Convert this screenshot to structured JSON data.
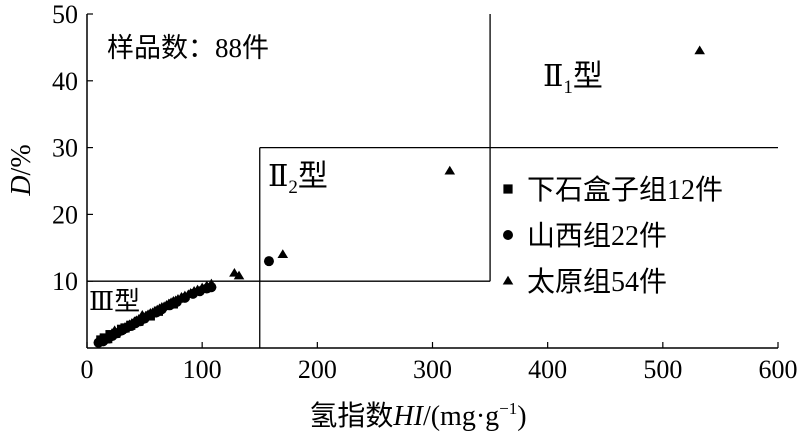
{
  "chart_data": {
    "type": "scatter",
    "xlabel_parts": {
      "prefix": "氢指数",
      "var": "HI",
      "unit_open": "/(mg·g",
      "sup": "−1",
      "unit_close": ")"
    },
    "ylabel_parts": {
      "var": "D",
      "unit": "/%"
    },
    "xlim": [
      0,
      600
    ],
    "ylim": [
      0,
      50
    ],
    "x_ticks": [
      {
        "v": 0,
        "label": "0"
      },
      {
        "v": 100,
        "label": "100"
      },
      {
        "v": 200,
        "label": "200"
      },
      {
        "v": 300,
        "label": "300"
      },
      {
        "v": 400,
        "label": "400"
      },
      {
        "v": 500,
        "label": "500"
      },
      {
        "v": 600,
        "label": "600"
      }
    ],
    "y_ticks": [
      {
        "v": 10,
        "label": "10"
      },
      {
        "v": 20,
        "label": "20"
      },
      {
        "v": 30,
        "label": "30"
      },
      {
        "v": 40,
        "label": "40"
      },
      {
        "v": 50,
        "label": "50"
      }
    ],
    "annotation_samples": "样品数：88件",
    "regions": {
      "type_II1": {
        "main": "Ⅱ",
        "sub": "1",
        "suffix": "型"
      },
      "type_II2": {
        "main": "Ⅱ",
        "sub": "2",
        "suffix": "型"
      },
      "type_III": {
        "text": "Ⅲ型"
      }
    },
    "boundary_lines": [
      {
        "x1": 150,
        "y1": 0,
        "x2": 150,
        "y2": 30
      },
      {
        "x1": 150,
        "y1": 30,
        "x2": 600,
        "y2": 30
      },
      {
        "x1": 0,
        "y1": 10,
        "x2": 350,
        "y2": 10
      },
      {
        "x1": 350,
        "y1": 10,
        "x2": 350,
        "y2": 50
      }
    ],
    "legend_position": "right",
    "series": [
      {
        "name": "下石盒子组12件",
        "marker": "square",
        "points": [
          [
            12,
            1.2
          ],
          [
            15,
            1.5
          ],
          [
            18,
            1.4
          ],
          [
            20,
            2.0
          ],
          [
            25,
            2.2
          ],
          [
            30,
            2.8
          ],
          [
            33,
            3.0
          ],
          [
            38,
            3.4
          ],
          [
            45,
            4.0
          ],
          [
            55,
            4.8
          ],
          [
            62,
            5.5
          ],
          [
            75,
            6.6
          ]
        ]
      },
      {
        "name": "山西组22件",
        "marker": "circle",
        "points": [
          [
            10,
            0.8
          ],
          [
            14,
            1.0
          ],
          [
            18,
            1.4
          ],
          [
            22,
            1.8
          ],
          [
            26,
            2.2
          ],
          [
            30,
            2.6
          ],
          [
            34,
            3.0
          ],
          [
            38,
            3.3
          ],
          [
            42,
            3.7
          ],
          [
            46,
            4.0
          ],
          [
            50,
            4.4
          ],
          [
            55,
            4.9
          ],
          [
            60,
            5.3
          ],
          [
            65,
            5.8
          ],
          [
            72,
            6.4
          ],
          [
            78,
            6.9
          ],
          [
            85,
            7.5
          ],
          [
            92,
            8.1
          ],
          [
            98,
            8.5
          ],
          [
            104,
            8.9
          ],
          [
            108,
            9.1
          ],
          [
            158,
            13.0
          ]
        ]
      },
      {
        "name": "太原组54件",
        "marker": "triangle",
        "points": [
          [
            11,
            0.9
          ],
          [
            13,
            1.1
          ],
          [
            15,
            1.3
          ],
          [
            17,
            1.5
          ],
          [
            19,
            1.7
          ],
          [
            21,
            1.9
          ],
          [
            23,
            2.1
          ],
          [
            25,
            2.3
          ],
          [
            27,
            2.5
          ],
          [
            29,
            2.7
          ],
          [
            31,
            2.9
          ],
          [
            33,
            3.1
          ],
          [
            35,
            3.3
          ],
          [
            37,
            3.5
          ],
          [
            39,
            3.7
          ],
          [
            41,
            3.9
          ],
          [
            43,
            4.1
          ],
          [
            45,
            4.3
          ],
          [
            47,
            4.5
          ],
          [
            49,
            4.6
          ],
          [
            51,
            4.8
          ],
          [
            53,
            5.0
          ],
          [
            55,
            5.2
          ],
          [
            57,
            5.3
          ],
          [
            59,
            5.5
          ],
          [
            61,
            5.7
          ],
          [
            63,
            5.9
          ],
          [
            65,
            6.1
          ],
          [
            67,
            6.2
          ],
          [
            69,
            6.4
          ],
          [
            71,
            6.6
          ],
          [
            73,
            6.8
          ],
          [
            75,
            7.0
          ],
          [
            77,
            7.1
          ],
          [
            79,
            7.3
          ],
          [
            82,
            7.6
          ],
          [
            85,
            7.8
          ],
          [
            88,
            8.0
          ],
          [
            90,
            8.2
          ],
          [
            93,
            8.5
          ],
          [
            96,
            8.7
          ],
          [
            100,
            9.0
          ],
          [
            104,
            9.3
          ],
          [
            108,
            9.6
          ],
          [
            12,
            1.4
          ],
          [
            16,
            1.2
          ],
          [
            24,
            2.6
          ],
          [
            36,
            3.1
          ],
          [
            48,
            4.9
          ],
          [
            128,
            11.2
          ],
          [
            132,
            10.8
          ],
          [
            170,
            14.0
          ],
          [
            315,
            26.5
          ],
          [
            532,
            44.5
          ]
        ]
      }
    ]
  }
}
